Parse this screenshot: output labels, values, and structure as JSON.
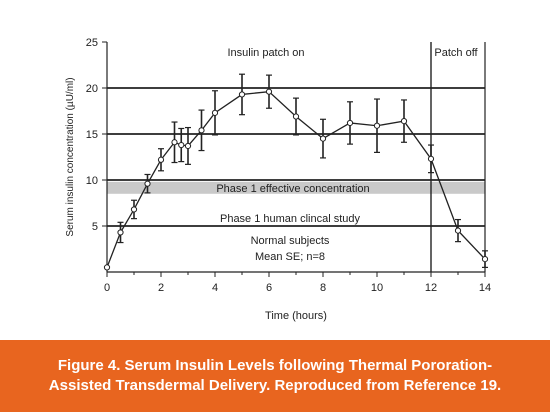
{
  "chart_data": {
    "type": "line",
    "xlabel": "Time (hours)",
    "ylabel": "Serum insulin concentration (µU/ml)",
    "xlim": [
      0,
      14
    ],
    "ylim": [
      0,
      25
    ],
    "xticks": [
      "0",
      "2",
      "4",
      "6",
      "8",
      "10",
      "12",
      "14"
    ],
    "yticks": [
      "5",
      "10",
      "15",
      "20",
      "25"
    ],
    "grid": false,
    "x": [
      0,
      0.5,
      1,
      1.5,
      2,
      2.5,
      2.75,
      3,
      3.5,
      4,
      5,
      6,
      7,
      8,
      9,
      10,
      11,
      12,
      13,
      14
    ],
    "y": [
      0.5,
      4.3,
      6.8,
      9.6,
      12.2,
      14.1,
      13.8,
      13.7,
      15.4,
      17.3,
      19.3,
      19.6,
      16.9,
      14.5,
      16.2,
      15.9,
      16.4,
      12.3,
      4.5,
      1.4
    ],
    "err": [
      0,
      1.1,
      1.0,
      1.0,
      1.2,
      2.2,
      1.8,
      2.0,
      2.2,
      2.4,
      2.2,
      1.8,
      2.0,
      2.1,
      2.3,
      2.9,
      2.3,
      1.5,
      1.2,
      0.9
    ],
    "reference_lines": [
      {
        "y": 20,
        "label": "Insulin patch on"
      },
      {
        "y": 15,
        "label": ""
      },
      {
        "y": 10,
        "label": ""
      },
      {
        "y": 5,
        "label": ""
      }
    ],
    "band": {
      "y0": 8.5,
      "y1": 9.8,
      "label": "Phase 1 effective concentration"
    },
    "patch_off": {
      "x": 12,
      "label": "Patch off"
    },
    "annotations": {
      "insulin_patch_on": "Insulin patch on",
      "patch_off": "Patch off",
      "phase1_effective": "Phase 1 effective concentration",
      "phase1_study": "Phase 1 human clincal study",
      "normal_subjects": "Normal subjects",
      "mean_se": "Mean SE; n=8"
    }
  },
  "caption": {
    "line1": "Figure 4. Serum Insulin Levels following Thermal  Pororation-",
    "line2": "Assisted Transdermal Delivery. Reproduced from Reference 19."
  },
  "colors": {
    "caption_bg": "#e8651f",
    "band": "#c9c9c9",
    "line": "#222222"
  }
}
